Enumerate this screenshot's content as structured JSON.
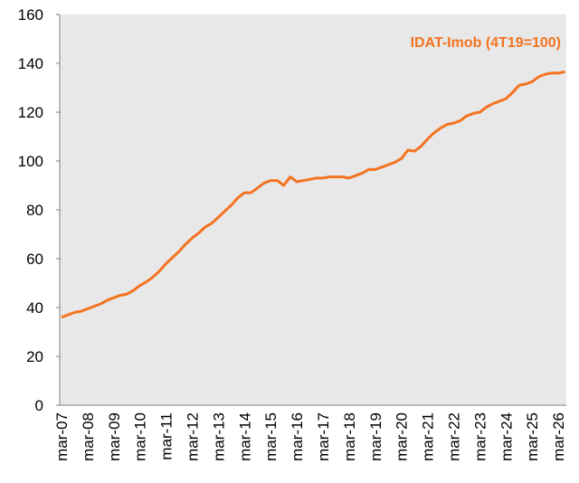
{
  "chart_data": {
    "type": "line",
    "categories": [
      "mar-07",
      null,
      null,
      null,
      "mar-08",
      null,
      null,
      null,
      "mar-09",
      null,
      null,
      null,
      "mar-10",
      null,
      null,
      null,
      "mar-11",
      null,
      null,
      null,
      "mar-12",
      null,
      null,
      null,
      "mar-13",
      null,
      null,
      null,
      "mar-14",
      null,
      null,
      null,
      "mar-15",
      null,
      null,
      null,
      "mar-16",
      null,
      null,
      null,
      "mar-17",
      null,
      null,
      null,
      "mar-18",
      null,
      null,
      null,
      "mar-19",
      null,
      null,
      null,
      "mar-20",
      null,
      null,
      null,
      "mar-21",
      null,
      null,
      null,
      "mar-22",
      null,
      null,
      null,
      "mar-23",
      null,
      null,
      null,
      "mar-24",
      null,
      null,
      null,
      "mar-25",
      null,
      null,
      null,
      "mar-26",
      null
    ],
    "series": [
      {
        "name": "IDAT-Imob (4T19=100)",
        "color": "#f47321",
        "values": [
          36,
          37,
          38,
          38.5,
          39.5,
          40.5,
          41.5,
          43,
          44,
          45,
          45.5,
          47,
          49,
          50.5,
          52.5,
          55,
          58,
          60.5,
          63,
          66,
          68.5,
          70.5,
          73,
          74.5,
          77,
          79.5,
          82,
          85,
          87,
          87,
          89,
          91,
          92,
          92,
          90,
          93.5,
          91.5,
          92,
          92.5,
          93,
          93,
          93.5,
          93.5,
          93.5,
          93,
          94,
          95,
          96.5,
          96.5,
          97.5,
          98.5,
          99.5,
          101,
          104.5,
          104,
          106,
          109,
          111.5,
          113.5,
          115,
          115.5,
          116.5,
          118.5,
          119.5,
          120,
          122,
          123.5,
          124.5,
          125.5,
          128,
          131,
          131.5,
          132.5,
          134.5,
          135.5,
          136,
          136,
          136.5
        ]
      }
    ],
    "ylim": [
      0,
      160
    ],
    "yticks": [
      0,
      20,
      40,
      60,
      80,
      100,
      120,
      140,
      160
    ],
    "grid": false,
    "legend": "top-right"
  }
}
